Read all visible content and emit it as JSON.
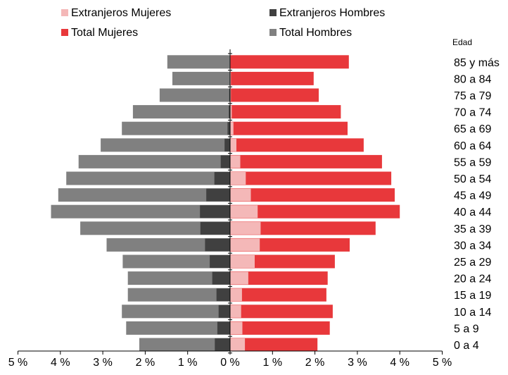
{
  "chart_data": {
    "type": "bar",
    "orientation": "horizontal",
    "layout": "population-pyramid",
    "legend": {
      "placement": "top",
      "entries": [
        "Extranjeros Mujeres",
        "Extranjeros Hombres",
        "Total Mujeres",
        "Total Hombres"
      ]
    },
    "y_title": "Edad",
    "categories": [
      "85 y más",
      "80 a 84",
      "75 a 79",
      "70 a 74",
      "65 a 69",
      "60 a 64",
      "55 a 59",
      "50 a 54",
      "45 a 49",
      "40 a 44",
      "35 a 39",
      "30 a 34",
      "25 a 29",
      "20 a 24",
      "15 a 19",
      "10 a 14",
      "5 a 9",
      "0 a 4"
    ],
    "x_ticks": [
      "5 %",
      "4 %",
      "3 %",
      "2 %",
      "1 %",
      "0 %",
      "1 %",
      "2 %",
      "3 %",
      "4 %",
      "5 %"
    ],
    "xlim": [
      -5,
      5
    ],
    "unit": "%",
    "grid": false,
    "series": [
      {
        "name": "Total Hombres",
        "side": "left",
        "color": "#808080",
        "values": [
          1.48,
          1.36,
          1.66,
          2.29,
          2.55,
          3.05,
          3.57,
          3.86,
          4.05,
          4.22,
          3.53,
          2.91,
          2.53,
          2.41,
          2.41,
          2.55,
          2.45,
          2.14
        ]
      },
      {
        "name": "Extranjeros Hombres",
        "side": "left",
        "color": "#404040",
        "values": [
          0.0,
          0.01,
          0.02,
          0.03,
          0.06,
          0.13,
          0.22,
          0.37,
          0.56,
          0.71,
          0.7,
          0.59,
          0.48,
          0.42,
          0.32,
          0.27,
          0.3,
          0.36
        ]
      },
      {
        "name": "Total Mujeres",
        "side": "right",
        "color": "#e8383b",
        "values": [
          2.8,
          1.97,
          2.09,
          2.61,
          2.77,
          3.15,
          3.58,
          3.8,
          3.88,
          4.0,
          3.43,
          2.82,
          2.47,
          2.3,
          2.27,
          2.42,
          2.35,
          2.06
        ]
      },
      {
        "name": "Extranjeros Mujeres",
        "side": "right",
        "color": "#f4b8b8",
        "values": [
          0.01,
          0.02,
          0.02,
          0.04,
          0.08,
          0.15,
          0.24,
          0.37,
          0.49,
          0.65,
          0.72,
          0.7,
          0.58,
          0.43,
          0.28,
          0.26,
          0.29,
          0.35
        ]
      }
    ]
  }
}
